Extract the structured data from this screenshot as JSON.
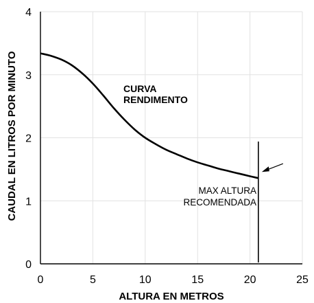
{
  "chart_data": {
    "type": "line",
    "xlabel": "ALTURA EN METROS",
    "ylabel": "CAUDAL EN LITROS POR MINUTO",
    "xlim": [
      0,
      25
    ],
    "ylim": [
      0,
      4
    ],
    "xticks": [
      0,
      5,
      10,
      15,
      20,
      25
    ],
    "yticks": [
      0,
      1,
      2,
      3,
      4
    ],
    "grid": true,
    "series": [
      {
        "name": "CURVA RENDIMIENTO",
        "x": [
          0,
          1,
          2,
          3,
          4,
          5,
          6,
          7,
          8,
          9,
          10,
          11,
          12,
          13,
          14,
          15,
          16,
          17,
          18,
          19,
          20,
          20.8
        ],
        "y": [
          3.34,
          3.3,
          3.24,
          3.15,
          3.02,
          2.86,
          2.67,
          2.47,
          2.29,
          2.13,
          2.0,
          1.9,
          1.81,
          1.74,
          1.67,
          1.61,
          1.56,
          1.51,
          1.47,
          1.43,
          1.39,
          1.36
        ]
      }
    ],
    "annotations": {
      "curve_label_line1": "CURVA",
      "curve_label_line2": "RENDIMENTO",
      "max_label_line1": "MAX ALTURA",
      "max_label_line2": "RECOMENDADA",
      "max_height_x": 20.8
    }
  }
}
